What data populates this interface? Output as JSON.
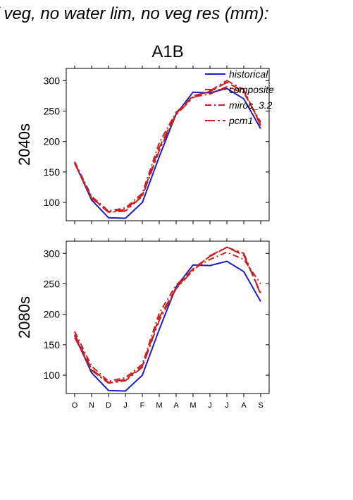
{
  "header": {
    "title": "f veg, no water lim, no veg res (mm):",
    "scenario": "A1B"
  },
  "legend": [
    {
      "name": "historical",
      "color": "#1f1fbf",
      "dash": "solid"
    },
    {
      "name": "composite",
      "color": "#c42222",
      "dash": "longdash"
    },
    {
      "name": "miroc_3.2",
      "color": "#c42222",
      "dash": "dashdot"
    },
    {
      "name": "pcm1",
      "color": "#c42222",
      "dash": "dashdotlong"
    }
  ],
  "chart_data": [
    {
      "type": "line",
      "panel_label": "2040s",
      "categories": [
        "O",
        "N",
        "D",
        "J",
        "F",
        "M",
        "A",
        "M",
        "J",
        "J",
        "A",
        "S"
      ],
      "ylim": [
        70,
        320
      ],
      "yticks": [
        100,
        150,
        200,
        250,
        300
      ],
      "legend_position": "top-right",
      "series": [
        {
          "name": "historical",
          "values": [
            165,
            104,
            75,
            74,
            100,
            175,
            245,
            281,
            280,
            287,
            270,
            221
          ]
        },
        {
          "name": "composite",
          "values": [
            165,
            108,
            85,
            88,
            112,
            190,
            246,
            275,
            282,
            297,
            282,
            228
          ]
        },
        {
          "name": "miroc_3.2",
          "values": [
            167,
            110,
            86,
            91,
            115,
            198,
            248,
            273,
            278,
            290,
            280,
            232
          ]
        },
        {
          "name": "pcm1",
          "values": [
            164,
            107,
            84,
            86,
            110,
            185,
            244,
            272,
            283,
            300,
            285,
            226
          ]
        }
      ]
    },
    {
      "type": "line",
      "panel_label": "2080s",
      "categories": [
        "O",
        "N",
        "D",
        "J",
        "F",
        "M",
        "A",
        "M",
        "J",
        "J",
        "A",
        "S"
      ],
      "ylim": [
        70,
        320
      ],
      "yticks": [
        100,
        150,
        200,
        250,
        300
      ],
      "series": [
        {
          "name": "historical",
          "values": [
            165,
            104,
            75,
            74,
            100,
            175,
            245,
            281,
            280,
            287,
            270,
            221
          ]
        },
        {
          "name": "composite",
          "values": [
            167,
            110,
            88,
            93,
            115,
            195,
            243,
            275,
            295,
            310,
            297,
            235
          ]
        },
        {
          "name": "miroc_3.2",
          "values": [
            172,
            115,
            90,
            96,
            118,
            202,
            248,
            274,
            290,
            302,
            290,
            250
          ]
        },
        {
          "name": "pcm1",
          "values": [
            162,
            108,
            87,
            91,
            113,
            190,
            242,
            272,
            296,
            310,
            300,
            233
          ]
        }
      ]
    }
  ]
}
